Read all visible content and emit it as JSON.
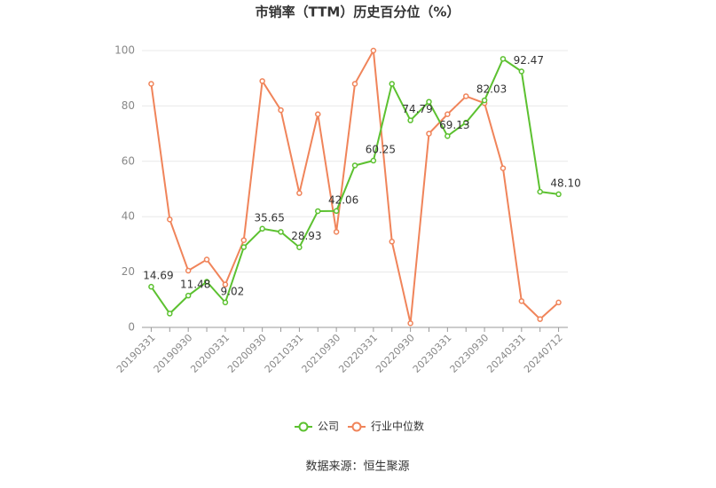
{
  "chart_data": {
    "type": "line",
    "title": "市销率（TTM）历史百分位（%）",
    "source": "数据来源：恒生聚源",
    "categories": [
      "20190331",
      null,
      "20190930",
      null,
      "20200331",
      null,
      "20200930",
      null,
      "20210331",
      null,
      "20210930",
      null,
      "20220331",
      null,
      "20220930",
      null,
      "20230331",
      null,
      "20230930",
      null,
      "20240331",
      null,
      "20240712"
    ],
    "series": [
      {
        "name": "公司",
        "color": "#5cc130",
        "values": [
          14.69,
          5,
          11.48,
          16.5,
          9.02,
          29,
          35.65,
          34.5,
          28.93,
          42,
          42.06,
          58.5,
          60.25,
          88,
          74.79,
          81.5,
          69.13,
          74,
          82.03,
          97,
          92.47,
          49,
          48.1
        ],
        "value_labels": [
          "14.69",
          null,
          "11.48",
          null,
          "9.02",
          null,
          "35.65",
          null,
          "28.93",
          null,
          "42.06",
          null,
          "60.25",
          null,
          "74.79",
          null,
          "69.13",
          null,
          "82.03",
          null,
          "92.47",
          null,
          "48.10"
        ]
      },
      {
        "name": "行业中位数",
        "color": "#f0845a",
        "values": [
          88,
          39,
          20.5,
          24.5,
          15.5,
          31.5,
          89,
          78.5,
          48.5,
          77,
          34.5,
          88,
          100,
          31,
          1.5,
          70,
          77,
          83.5,
          81,
          57.5,
          9.5,
          3,
          9
        ]
      }
    ],
    "ylim": [
      0,
      100
    ],
    "yticks": [
      0,
      20,
      40,
      60,
      80,
      100
    ],
    "grid": true
  }
}
